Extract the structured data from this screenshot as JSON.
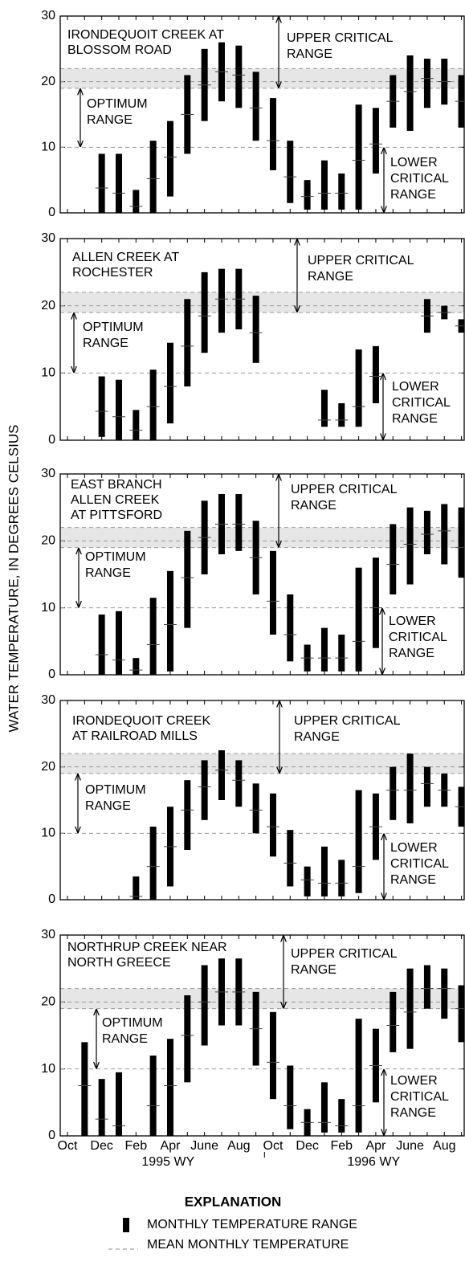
{
  "ylabel": "WATER TEMPERATURE, IN DEGREES CELSIUS",
  "explanation": {
    "title": "EXPLANATION",
    "items": [
      "MONTHLY TEMPERATURE RANGE",
      "MEAN MONTHLY TEMPERATURE"
    ]
  },
  "chart_data": [
    {
      "type": "range-bar",
      "title": [
        "IRONDEQUOIT CREEK AT",
        "BLOSSOM ROAD"
      ],
      "ylim": [
        0,
        30
      ],
      "yticks": [
        0,
        10,
        20,
        30
      ],
      "grid": true,
      "band": [
        19,
        22
      ],
      "low": [
        null,
        null,
        0,
        0,
        0,
        0,
        2.5,
        9,
        14,
        17,
        16,
        11,
        6.5,
        1.5,
        0.5,
        0.5,
        0.5,
        0.5,
        6,
        13,
        12.5,
        16,
        16.5,
        13
      ],
      "high": [
        null,
        null,
        9,
        9,
        3.5,
        11,
        14,
        21,
        25,
        26,
        25.5,
        21.5,
        17.5,
        11,
        5,
        8,
        6,
        16.5,
        16,
        21,
        24,
        23.5,
        23.5,
        21
      ],
      "mean": [
        null,
        null,
        3.8,
        3,
        1,
        5.2,
        8.5,
        15,
        19.5,
        21.5,
        21,
        16,
        11,
        5.5,
        2.5,
        3,
        3,
        8,
        10.5,
        17,
        18.5,
        20.5,
        20,
        17
      ],
      "annotations": [
        {
          "text": [
            "UPPER CRITICAL",
            "RANGE"
          ],
          "span": [
            30,
            19
          ]
        },
        {
          "text": [
            "OPTIMUM",
            "RANGE"
          ],
          "span": [
            19,
            10
          ]
        },
        {
          "text": [
            "LOWER",
            "CRITICAL",
            "RANGE"
          ],
          "span": [
            10,
            0
          ]
        }
      ]
    },
    {
      "type": "range-bar",
      "title": [
        "ALLEN CREEK AT",
        "ROCHESTER"
      ],
      "ylim": [
        0,
        30
      ],
      "yticks": [
        0,
        10,
        20,
        30
      ],
      "grid": true,
      "band": [
        19,
        22
      ],
      "low": [
        null,
        null,
        0.5,
        0,
        0,
        0,
        2.5,
        8,
        13,
        16,
        16.5,
        11.5,
        null,
        null,
        null,
        2,
        2,
        2,
        5.5,
        null,
        null,
        16,
        18,
        16
      ],
      "high": [
        null,
        null,
        9.5,
        9,
        4.5,
        10.5,
        14.5,
        21,
        25,
        25.5,
        25.5,
        21.5,
        null,
        null,
        null,
        7.5,
        5.5,
        13.5,
        14,
        null,
        null,
        21,
        20,
        18
      ],
      "mean": [
        null,
        null,
        4.3,
        3.5,
        1.5,
        5,
        8,
        14,
        18.5,
        21,
        21,
        16,
        null,
        null,
        null,
        3,
        3,
        5,
        9.5,
        null,
        null,
        18.5,
        19,
        17
      ],
      "annotations": [
        {
          "text": [
            "UPPER CRITICAL",
            "RANGE"
          ],
          "span": [
            30,
            19
          ]
        },
        {
          "text": [
            "OPTIMUM",
            "RANGE"
          ],
          "span": [
            19,
            10
          ]
        },
        {
          "text": [
            "LOWER",
            "CRITICAL",
            "RANGE"
          ],
          "span": [
            10,
            0
          ]
        }
      ]
    },
    {
      "type": "range-bar",
      "title": [
        "EAST BRANCH",
        "ALLEN CREEK",
        "AT PITTSFORD"
      ],
      "ylim": [
        0,
        30
      ],
      "yticks": [
        0,
        10,
        20,
        30
      ],
      "grid": true,
      "band": [
        19,
        22
      ],
      "low": [
        null,
        null,
        0,
        0,
        0,
        0,
        0.5,
        7,
        15,
        18,
        18.5,
        12,
        6,
        2,
        0.5,
        0.5,
        0.5,
        0.5,
        4,
        12,
        13.5,
        18,
        16.5,
        14.5
      ],
      "high": [
        null,
        null,
        9,
        9.5,
        2.5,
        11.5,
        15.5,
        21.5,
        26,
        27,
        27,
        23,
        18.5,
        12,
        4.5,
        7,
        6,
        16,
        17.5,
        22.5,
        25,
        24.5,
        25.5,
        25
      ],
      "mean": [
        null,
        null,
        3,
        2.2,
        0.7,
        4.5,
        7.5,
        14.5,
        20.5,
        22.5,
        22.5,
        17.5,
        11,
        6,
        2.5,
        2.5,
        2.5,
        5,
        10,
        16.5,
        19.5,
        21,
        21.5,
        19
      ],
      "annotations": [
        {
          "text": [
            "UPPER CRITICAL",
            "RANGE"
          ],
          "span": [
            30,
            19
          ]
        },
        {
          "text": [
            "OPTIMUM",
            "RANGE"
          ],
          "span": [
            19,
            10
          ]
        },
        {
          "text": [
            "LOWER",
            "CRITICAL",
            "RANGE"
          ],
          "span": [
            10,
            0
          ]
        }
      ]
    },
    {
      "type": "range-bar",
      "title": [
        "IRONDEQUOIT CREEK",
        "AT RAILROAD MILLS"
      ],
      "ylim": [
        0,
        30
      ],
      "yticks": [
        0,
        10,
        20,
        30
      ],
      "grid": true,
      "band": [
        19,
        22
      ],
      "low": [
        null,
        null,
        null,
        null,
        0,
        0,
        2,
        7.5,
        12,
        15,
        14,
        10,
        6.5,
        2,
        0.5,
        0.5,
        0.5,
        1,
        6,
        12,
        11.5,
        14,
        14,
        11
      ],
      "high": [
        null,
        null,
        null,
        null,
        3.5,
        11,
        14,
        18,
        21,
        22.5,
        21,
        17.5,
        16,
        10.5,
        5,
        8,
        6,
        16.5,
        16,
        20,
        22,
        20,
        19,
        17
      ],
      "mean": [
        null,
        null,
        null,
        null,
        0.5,
        5,
        8,
        13.5,
        17,
        19.5,
        18,
        13.5,
        11,
        5.5,
        3,
        2.5,
        2.5,
        5,
        11,
        16.5,
        16.5,
        17.5,
        16.5,
        14
      ],
      "annotations": [
        {
          "text": [
            "UPPER CRITICAL",
            "RANGE"
          ],
          "span": [
            30,
            19
          ]
        },
        {
          "text": [
            "OPTIMUM",
            "RANGE"
          ],
          "span": [
            19,
            10
          ]
        },
        {
          "text": [
            "LOWER",
            "CRITICAL",
            "RANGE"
          ],
          "span": [
            10,
            0
          ]
        }
      ]
    },
    {
      "type": "range-bar",
      "title": [
        "NORTHRUP CREEK NEAR",
        "NORTH GREECE"
      ],
      "ylim": [
        0,
        30
      ],
      "yticks": [
        0,
        10,
        20,
        30
      ],
      "grid": true,
      "band": [
        19,
        22
      ],
      "categories": [
        "Oct",
        null,
        "Dec",
        null,
        "Feb",
        null,
        "Apr",
        null,
        "June",
        null,
        "Aug",
        null,
        "Oct",
        null,
        "Dec",
        null,
        "Feb",
        null,
        "Apr",
        null,
        "June",
        null,
        "Aug",
        null
      ],
      "xgroups": [
        "1995 WY",
        "1996 WY"
      ],
      "low": [
        null,
        0,
        0,
        0,
        null,
        0,
        0,
        8,
        13.5,
        16.5,
        16.5,
        10.5,
        5.5,
        1,
        0,
        0.5,
        0.5,
        0.5,
        5,
        12.5,
        13,
        19,
        17.5,
        14
      ],
      "high": [
        null,
        14,
        8.5,
        9.5,
        null,
        12,
        14.5,
        21,
        25.5,
        26.5,
        26.5,
        21.5,
        18.5,
        10.5,
        4,
        8,
        5.5,
        17.5,
        16,
        21.5,
        25,
        25.5,
        25,
        22.5
      ],
      "mean": [
        null,
        7.5,
        2.5,
        1.5,
        null,
        4.5,
        7.5,
        15,
        20,
        21.5,
        21.5,
        16,
        11,
        4.5,
        2,
        2,
        1.5,
        4.5,
        10.5,
        16.5,
        18.5,
        22,
        22,
        19
      ],
      "annotations": [
        {
          "text": [
            "UPPER CRITICAL",
            "RANGE"
          ],
          "span": [
            30,
            19
          ]
        },
        {
          "text": [
            "OPTIMUM",
            "RANGE"
          ],
          "span": [
            19,
            10
          ]
        },
        {
          "text": [
            "LOWER",
            "CRITICAL",
            "RANGE"
          ],
          "span": [
            10,
            0
          ]
        }
      ]
    }
  ]
}
